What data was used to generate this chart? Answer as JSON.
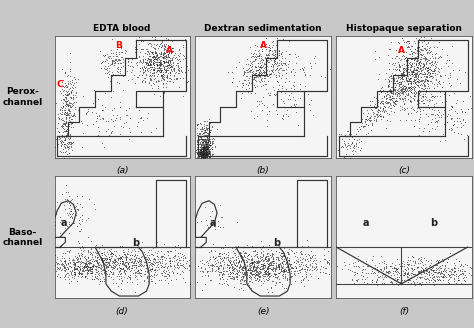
{
  "title_row1": [
    "EDTA blood",
    "Dextran sedimentation",
    "Histopaque separation"
  ],
  "label_col1": "Perox-\nchannel",
  "label_col2": "Baso-\nchannel",
  "panel_labels_top": [
    "(a)",
    "(b)",
    "(c)"
  ],
  "panel_labels_bot": [
    "(d)",
    "(e)",
    "(f)"
  ],
  "fig_bg": "#c8c8c8",
  "ax_bg": "#f5f5f5",
  "scatter_color": "#222222",
  "boundary_color": "#333333"
}
